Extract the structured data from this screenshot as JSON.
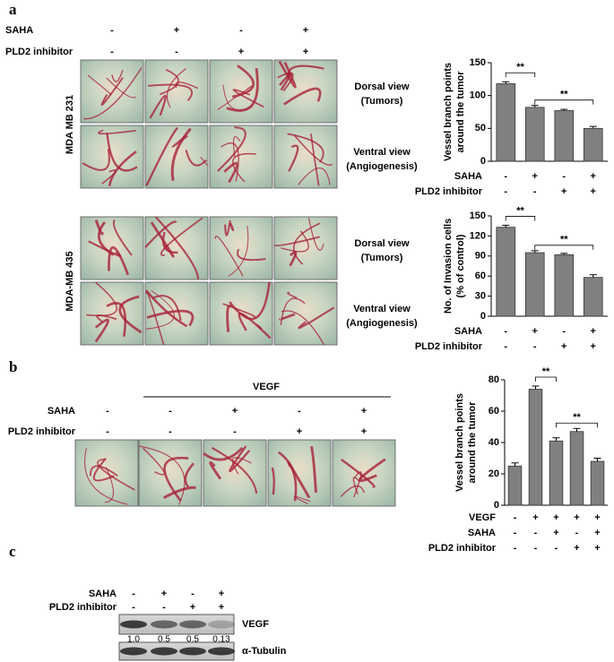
{
  "panel_labels": [
    "a",
    "b",
    "c"
  ],
  "panel_a": {
    "conditions": [
      {
        "name": "SAHA",
        "signs": [
          "-",
          "+",
          "-",
          "+"
        ]
      },
      {
        "name": "PLD2 inhibitor",
        "signs": [
          "-",
          "-",
          "+",
          "+"
        ]
      }
    ],
    "cell_lines": [
      "MDA MB 231",
      "MDA-MB 435"
    ],
    "views": [
      {
        "title": "Dorsal view",
        "subtitle": "(Tumors)"
      },
      {
        "title": "Ventral view",
        "subtitle": "(Angiogenesis)"
      }
    ]
  },
  "panel_b": {
    "header": "VEGF",
    "conditions": [
      {
        "name": "SAHA",
        "signs": [
          "-",
          "-",
          "+",
          "-",
          "+"
        ]
      },
      {
        "name": "PLD2 inhibitor",
        "signs": [
          "-",
          "-",
          "-",
          "+",
          "+"
        ]
      }
    ]
  },
  "panel_c": {
    "conditions": [
      {
        "name": "SAHA",
        "signs": [
          "-",
          "+",
          "-",
          "+"
        ]
      },
      {
        "name": "PLD2 inhibitor",
        "signs": [
          "-",
          "-",
          "+",
          "+"
        ]
      }
    ],
    "bands": [
      {
        "label": "VEGF",
        "ratios": [
          "1.0",
          "0.5",
          "0.5",
          "0.13"
        ]
      },
      {
        "label": "α-Tubulin"
      }
    ]
  },
  "chart_data": [
    {
      "type": "bar",
      "ylabel": [
        "Vessel branch points",
        "around the tumor"
      ],
      "categories": [
        null,
        null,
        null,
        null
      ],
      "values": [
        118,
        82,
        77,
        50
      ],
      "errors": [
        3,
        3,
        2,
        3
      ],
      "color": "#808080",
      "ylim": [
        0,
        150
      ],
      "yticks": [
        0,
        50,
        100,
        150
      ],
      "conditions": [
        {
          "name": "SAHA",
          "signs": [
            "-",
            "+",
            "-",
            "+"
          ]
        },
        {
          "name": "PLD2 inhibitor",
          "signs": [
            "-",
            "-",
            "+",
            "+"
          ]
        }
      ],
      "annotations": [
        "**",
        "**"
      ]
    },
    {
      "type": "bar",
      "ylabel": [
        "No. of Invasion cells",
        "(% of control)"
      ],
      "categories": [
        null,
        null,
        null,
        null
      ],
      "values": [
        133,
        95,
        92,
        58
      ],
      "errors": [
        3,
        3,
        2,
        4
      ],
      "color": "#808080",
      "ylim": [
        0,
        150
      ],
      "yticks": [
        0,
        30,
        60,
        90,
        120,
        150
      ],
      "conditions": [
        {
          "name": "SAHA",
          "signs": [
            "-",
            "+",
            "-",
            "+"
          ]
        },
        {
          "name": "PLD2 inhibitor",
          "signs": [
            "-",
            "-",
            "+",
            "+"
          ]
        }
      ],
      "annotations": [
        "**",
        "**"
      ]
    },
    {
      "type": "bar",
      "ylabel": [
        "Vessel branch points",
        "around the tumor"
      ],
      "categories": [
        null,
        null,
        null,
        null,
        null
      ],
      "values": [
        25,
        74,
        41,
        47,
        28
      ],
      "errors": [
        2,
        2,
        2,
        2,
        2
      ],
      "color": "#808080",
      "ylim": [
        0,
        80
      ],
      "yticks": [
        0,
        20,
        40,
        60,
        80
      ],
      "conditions": [
        {
          "name": "VEGF",
          "signs": [
            "-",
            "+",
            "+",
            "+",
            "+"
          ]
        },
        {
          "name": "SAHA",
          "signs": [
            "-",
            "-",
            "+",
            "-",
            "+"
          ]
        },
        {
          "name": "PLD2 inhibitor",
          "signs": [
            "-",
            "-",
            "-",
            "+",
            "+"
          ]
        }
      ],
      "annotations": [
        "**",
        "**"
      ]
    }
  ]
}
